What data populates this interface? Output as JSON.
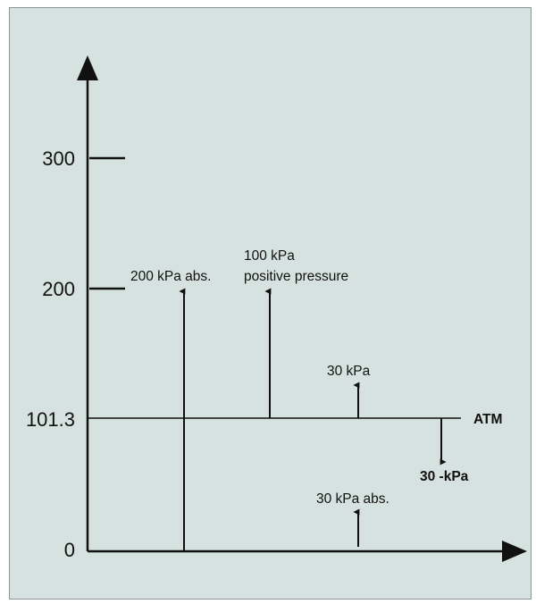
{
  "y_ticks": {
    "t300": "300",
    "t200": "200",
    "t101": "101.3",
    "t0": "0"
  },
  "labels": {
    "abs200": "200 kPa abs.",
    "pos_line1": "100 kPa",
    "pos_line2": "positive pressure",
    "gauge30": "30 kPa",
    "atm": "ATM",
    "neg30": "30 -kPa",
    "abs30": "30 kPa abs."
  },
  "colors": {
    "background": "#d6e2df",
    "ink": "#111111"
  }
}
